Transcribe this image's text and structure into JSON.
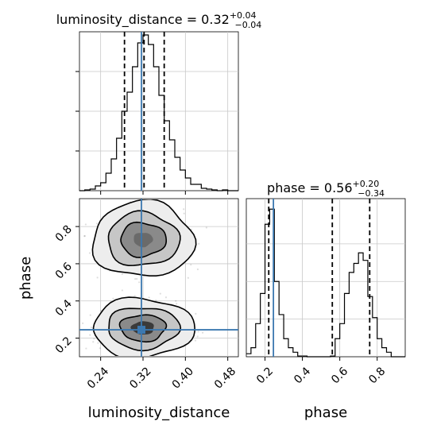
{
  "chart_data": {
    "type": "corner",
    "truth_color": "#3b78b0",
    "parameters": [
      "luminosity_distance",
      "phase"
    ],
    "x_tick_labels": {
      "luminosity_distance": [
        "0.24",
        "0.32",
        "0.40",
        "0.48"
      ],
      "phase": [
        "0.2",
        "0.4",
        "0.6",
        "0.8"
      ]
    },
    "y_tick_labels": {
      "phase": [
        "0.2",
        "0.4",
        "0.6",
        "0.8"
      ]
    },
    "x_labels": {
      "luminosity_distance": "luminosity_distance",
      "phase": "phase"
    },
    "y_labels": {
      "phase": "phase"
    },
    "panels": [
      {
        "kind": "hist",
        "param": "luminosity_distance",
        "title": {
          "prefix": "luminosity_distance = 0.32",
          "plus": "+0.04",
          "minus": "−0.04"
        },
        "xlim": [
          0.2,
          0.5
        ],
        "ylim": [
          0,
          1.0
        ],
        "bin_edges": [
          0.2,
          0.21,
          0.22,
          0.23,
          0.24,
          0.25,
          0.26,
          0.27,
          0.28,
          0.29,
          0.3,
          0.31,
          0.32,
          0.33,
          0.34,
          0.35,
          0.36,
          0.37,
          0.38,
          0.39,
          0.4,
          0.41,
          0.42,
          0.43,
          0.44,
          0.45,
          0.46,
          0.47,
          0.48,
          0.49,
          0.5
        ],
        "counts": [
          0,
          0.005,
          0.01,
          0.03,
          0.05,
          0.11,
          0.2,
          0.33,
          0.5,
          0.62,
          0.78,
          0.93,
          0.98,
          0.92,
          0.78,
          0.6,
          0.44,
          0.32,
          0.21,
          0.13,
          0.08,
          0.04,
          0.04,
          0.015,
          0.01,
          0.005,
          0.0,
          0.005,
          0.0,
          0.0
        ],
        "quantiles": [
          0.285,
          0.322,
          0.36
        ],
        "truth": 0.317
      },
      {
        "kind": "hist",
        "param": "phase",
        "title": {
          "prefix": "phase = 0.56",
          "plus": "+0.20",
          "minus": "−0.34"
        },
        "xlim": [
          0.1,
          0.95
        ],
        "ylim": [
          0,
          1.05
        ],
        "bin_edges": [
          0.1,
          0.125,
          0.15,
          0.175,
          0.2,
          0.225,
          0.25,
          0.275,
          0.3,
          0.325,
          0.35,
          0.375,
          0.4,
          0.425,
          0.45,
          0.475,
          0.5,
          0.525,
          0.55,
          0.575,
          0.6,
          0.625,
          0.65,
          0.675,
          0.7,
          0.725,
          0.75,
          0.775,
          0.8,
          0.825,
          0.85,
          0.875,
          0.9,
          0.925,
          0.95
        ],
        "counts": [
          0.02,
          0.06,
          0.22,
          0.42,
          0.88,
          0.98,
          0.5,
          0.28,
          0.12,
          0.06,
          0.03,
          0.005,
          0.005,
          0.0,
          0.0,
          0.0,
          0.0,
          0.0,
          0.005,
          0.12,
          0.22,
          0.42,
          0.56,
          0.62,
          0.69,
          0.64,
          0.4,
          0.26,
          0.12,
          0.06,
          0.03,
          0.0,
          0.0,
          0.0
        ],
        "quantiles": [
          0.22,
          0.56,
          0.76
        ],
        "truth": 0.245
      },
      {
        "kind": "2d",
        "x_param": "luminosity_distance",
        "y_param": "phase",
        "xlim": [
          0.2,
          0.5
        ],
        "ylim": [
          0.1,
          0.95
        ],
        "truth_x": 0.317,
        "truth_y": 0.245,
        "modes": [
          {
            "cx": 0.32,
            "cy": 0.73,
            "sx": 0.033,
            "sy": 0.07
          },
          {
            "cx": 0.32,
            "cy": 0.255,
            "sx": 0.033,
            "sy": 0.055
          }
        ]
      }
    ]
  }
}
